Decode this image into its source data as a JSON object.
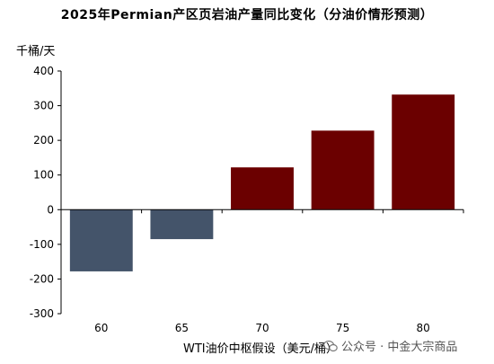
{
  "chart_data": {
    "type": "bar",
    "title": "2025年Permian产区页岩油产量同比变化（分油价情形预测）",
    "ylabel": "千桶/天",
    "xlabel": "WTI油价中枢假设（美元/桶）",
    "categories": [
      "60",
      "65",
      "70",
      "75",
      "80"
    ],
    "values": [
      -178,
      -85,
      122,
      228,
      332
    ],
    "ylim": [
      -300,
      400
    ],
    "yticks": [
      "400",
      "300",
      "200",
      "100",
      "0",
      "-100",
      "-200",
      "-300"
    ],
    "grid": false,
    "colors": [
      "#44546a",
      "#44546a",
      "#6b0000",
      "#6b0000",
      "#6b0000"
    ]
  },
  "watermark": {
    "icon": "wechat-public-account-icon",
    "text": "公众号 · 中金大宗商品"
  }
}
